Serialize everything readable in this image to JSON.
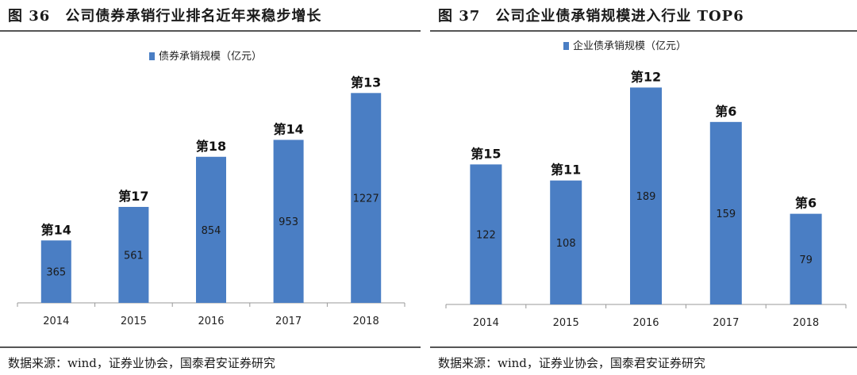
{
  "source_text": "数据来源：wind，证券业协会，国泰君安证券研究",
  "chart_data": [
    {
      "type": "bar",
      "title": "图 36　公司债券承销行业排名近年来稳步增长",
      "legend": "债券承销规模（亿元）",
      "categories": [
        "2014",
        "2015",
        "2016",
        "2017",
        "2018"
      ],
      "values": [
        365,
        561,
        854,
        953,
        1227
      ],
      "annotations": [
        "第14",
        "第17",
        "第18",
        "第14",
        "第13"
      ],
      "ylim": [
        0,
        1400
      ],
      "bar_color": "#4a7ec4",
      "grid": false
    },
    {
      "type": "bar",
      "title": "图 37　公司企业债承销规模进入行业 TOP6",
      "legend": "企业债承销规模（亿元）",
      "categories": [
        "2014",
        "2015",
        "2016",
        "2017",
        "2018"
      ],
      "values": [
        122,
        108,
        189,
        159,
        79
      ],
      "annotations": [
        "第15",
        "第11",
        "第12",
        "第6",
        "第6"
      ],
      "ylim": [
        0,
        210
      ],
      "bar_color": "#4a7ec4",
      "grid": false
    }
  ]
}
